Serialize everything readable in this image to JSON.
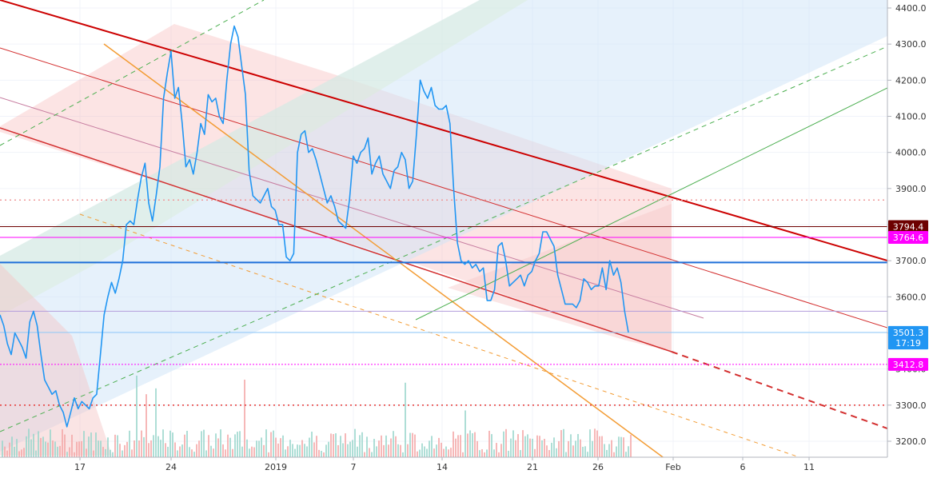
{
  "chart_data": {
    "type": "line",
    "title": "",
    "xlabel": "",
    "ylabel": "",
    "ylim": [
      3160,
      4420
    ],
    "x_ticks": [
      "17",
      "24",
      "2019",
      "7",
      "14",
      "21",
      "26",
      "Feb",
      "6",
      "11"
    ],
    "y_ticks": [
      "3200.0",
      "3300.0",
      "3400.0",
      "3500.0",
      "3600.0",
      "3700.0",
      "3800.0",
      "3900.0",
      "4000.0",
      "4100.0",
      "4200.0",
      "4300.0",
      "4400.0"
    ],
    "price_labels": [
      {
        "text": "3794.4",
        "value": 3794.4,
        "color": "#6d0000"
      },
      {
        "text": "3764.6",
        "value": 3764.6,
        "color": "#ff00ff"
      },
      {
        "text": "3501.3",
        "value": 3501.3,
        "color": "#2196f3"
      },
      {
        "text": "17:19",
        "value": 3472,
        "color": "#2196f3"
      },
      {
        "text": "3412.8",
        "value": 3412.8,
        "color": "#ff00ff"
      }
    ],
    "series": [
      {
        "values": [
          3550,
          3520,
          3470,
          3440,
          3500,
          3480,
          3460,
          3430,
          3530,
          3560,
          3520,
          3440,
          3370,
          3350,
          3330,
          3340,
          3300,
          3280,
          3240,
          3280,
          3320,
          3290,
          3310,
          3300,
          3290,
          3320,
          3330,
          3440,
          3550,
          3600,
          3640,
          3610,
          3650,
          3700,
          3800,
          3810,
          3800,
          3870,
          3930,
          3970,
          3860,
          3810,
          3880,
          3960,
          4150,
          4220,
          4280,
          4150,
          4180,
          4080,
          3960,
          3980,
          3940,
          4000,
          4080,
          4050,
          4160,
          4140,
          4150,
          4100,
          4080,
          4200,
          4300,
          4350,
          4320,
          4240,
          4160,
          3950,
          3880,
          3870,
          3860,
          3880,
          3900,
          3850,
          3840,
          3800,
          3800,
          3710,
          3700,
          3720,
          4000,
          4050,
          4060,
          4000,
          4010,
          3980,
          3940,
          3900,
          3860,
          3880,
          3850,
          3810,
          3800,
          3790,
          3870,
          3990,
          3970,
          4000,
          4010,
          4040,
          3940,
          3970,
          3990,
          3940,
          3920,
          3900,
          3950,
          3960,
          4000,
          3980,
          3900,
          3920,
          4050,
          4200,
          4170,
          4150,
          4180,
          4130,
          4120,
          4120,
          4130,
          4080,
          3900,
          3750,
          3700,
          3690,
          3700,
          3680,
          3690,
          3670,
          3680,
          3590,
          3590,
          3620,
          3740,
          3750,
          3700,
          3630,
          3640,
          3650,
          3660,
          3630,
          3660,
          3670,
          3700,
          3720,
          3780,
          3780,
          3760,
          3740,
          3660,
          3620,
          3580,
          3580,
          3580,
          3570,
          3590,
          3650,
          3640,
          3620,
          3630,
          3630,
          3680,
          3620,
          3700,
          3660,
          3680,
          3640,
          3560,
          3501.3
        ],
        "color": "#2196f3"
      }
    ]
  }
}
